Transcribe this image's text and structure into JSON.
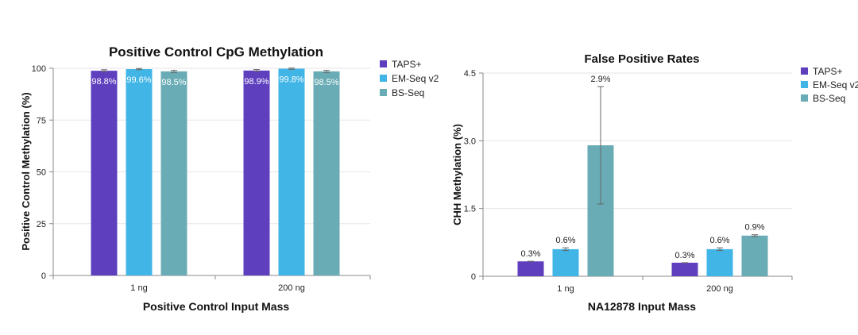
{
  "chart_data": [
    {
      "type": "bar",
      "title": "Positive Control CpG Methylation",
      "xlabel": "Positive Control Input Mass",
      "ylabel": "Positive Control Methylation (%)",
      "categories": [
        "1 ng",
        "200 ng"
      ],
      "ylim": [
        0,
        100
      ],
      "yticks": [
        "0",
        "25",
        "50",
        "75",
        "100"
      ],
      "ytick_values": [
        0,
        25,
        50,
        75,
        100
      ],
      "grid": true,
      "legend_position": "right",
      "label_position": "inside-top",
      "series": [
        {
          "name": "TAPS+",
          "color": "#5e3fbe",
          "values": [
            98.8,
            98.9
          ],
          "errors": [
            0.5,
            0.5
          ],
          "labels": [
            "98.8%",
            "98.9%"
          ]
        },
        {
          "name": "EM-Seq v2",
          "color": "#41b5e6",
          "values": [
            99.6,
            99.8
          ],
          "errors": [
            0.3,
            0.3
          ],
          "labels": [
            "99.6%",
            "99.8%"
          ]
        },
        {
          "name": "BS-Seq",
          "color": "#6aacb5",
          "values": [
            98.5,
            98.5
          ],
          "errors": [
            0.5,
            0.5
          ],
          "labels": [
            "98.5%",
            "98.5%"
          ]
        }
      ]
    },
    {
      "type": "bar",
      "title": "False Positive Rates",
      "xlabel": "NA12878 Input Mass",
      "ylabel": "CHH Methylation (%)",
      "categories": [
        "1 ng",
        "200 ng"
      ],
      "ylim": [
        0,
        4.5
      ],
      "yticks": [
        "0",
        "1.5",
        "3.0",
        "4.5"
      ],
      "ytick_values": [
        0,
        1.5,
        3.0,
        4.5
      ],
      "grid": true,
      "legend_position": "right",
      "label_position": "above",
      "series": [
        {
          "name": "TAPS+",
          "color": "#5e3fbe",
          "values": [
            0.33,
            0.3
          ],
          "errors": [
            0.0,
            0.0
          ],
          "labels": [
            "0.3%",
            "0.3%"
          ]
        },
        {
          "name": "EM-Seq v2",
          "color": "#41b5e6",
          "values": [
            0.6,
            0.6
          ],
          "errors": [
            0.03,
            0.03
          ],
          "labels": [
            "0.6%",
            "0.6%"
          ]
        },
        {
          "name": "BS-Seq",
          "color": "#6aacb5",
          "values": [
            2.9,
            0.9
          ],
          "errors": [
            1.3,
            0.02
          ],
          "labels": [
            "2.9%",
            "0.9%"
          ]
        }
      ]
    }
  ]
}
